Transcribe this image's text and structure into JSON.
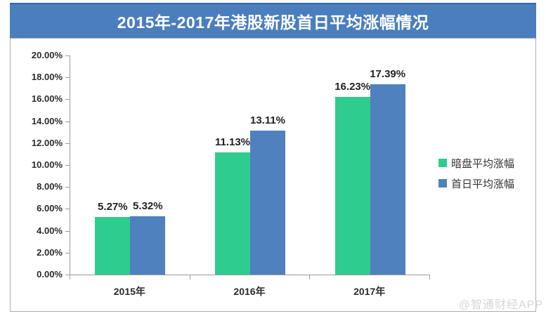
{
  "banner": {
    "title_prefix": "2015年-2017年港股新股",
    "title_emphasis": "首日平均涨幅",
    "title_suffix": "情况",
    "bg_color": "#4a7ebd",
    "text_color": "#ffffff"
  },
  "watermark": "@智通财经APP",
  "chart_data": {
    "type": "bar",
    "title": "2015年-2017年港股新股首日平均涨幅情况",
    "categories": [
      "2015年",
      "2016年",
      "2017年"
    ],
    "series": [
      {
        "name": "暗盘平均涨幅",
        "color": "#2ecc8f",
        "values": [
          5.27,
          11.13,
          16.23
        ],
        "labels": [
          "5.27%",
          "11.13%",
          "16.23%"
        ]
      },
      {
        "name": "首日平均涨幅",
        "color": "#4e81bd",
        "values": [
          5.32,
          13.11,
          17.39
        ],
        "labels": [
          "5.32%",
          "13.11%",
          "17.39%"
        ]
      }
    ],
    "xlabel": "",
    "ylabel": "",
    "ylim": [
      0,
      20
    ],
    "ytick_step": 2,
    "ytick_labels": [
      "20.00%",
      "18.00%",
      "16.00%",
      "14.00%",
      "12.00%",
      "10.00%",
      "8.00%",
      "6.00%",
      "4.00%",
      "2.00%",
      "0.00%"
    ],
    "grid": false,
    "legend_position": "right",
    "axis_color": "#9b9b9b"
  }
}
